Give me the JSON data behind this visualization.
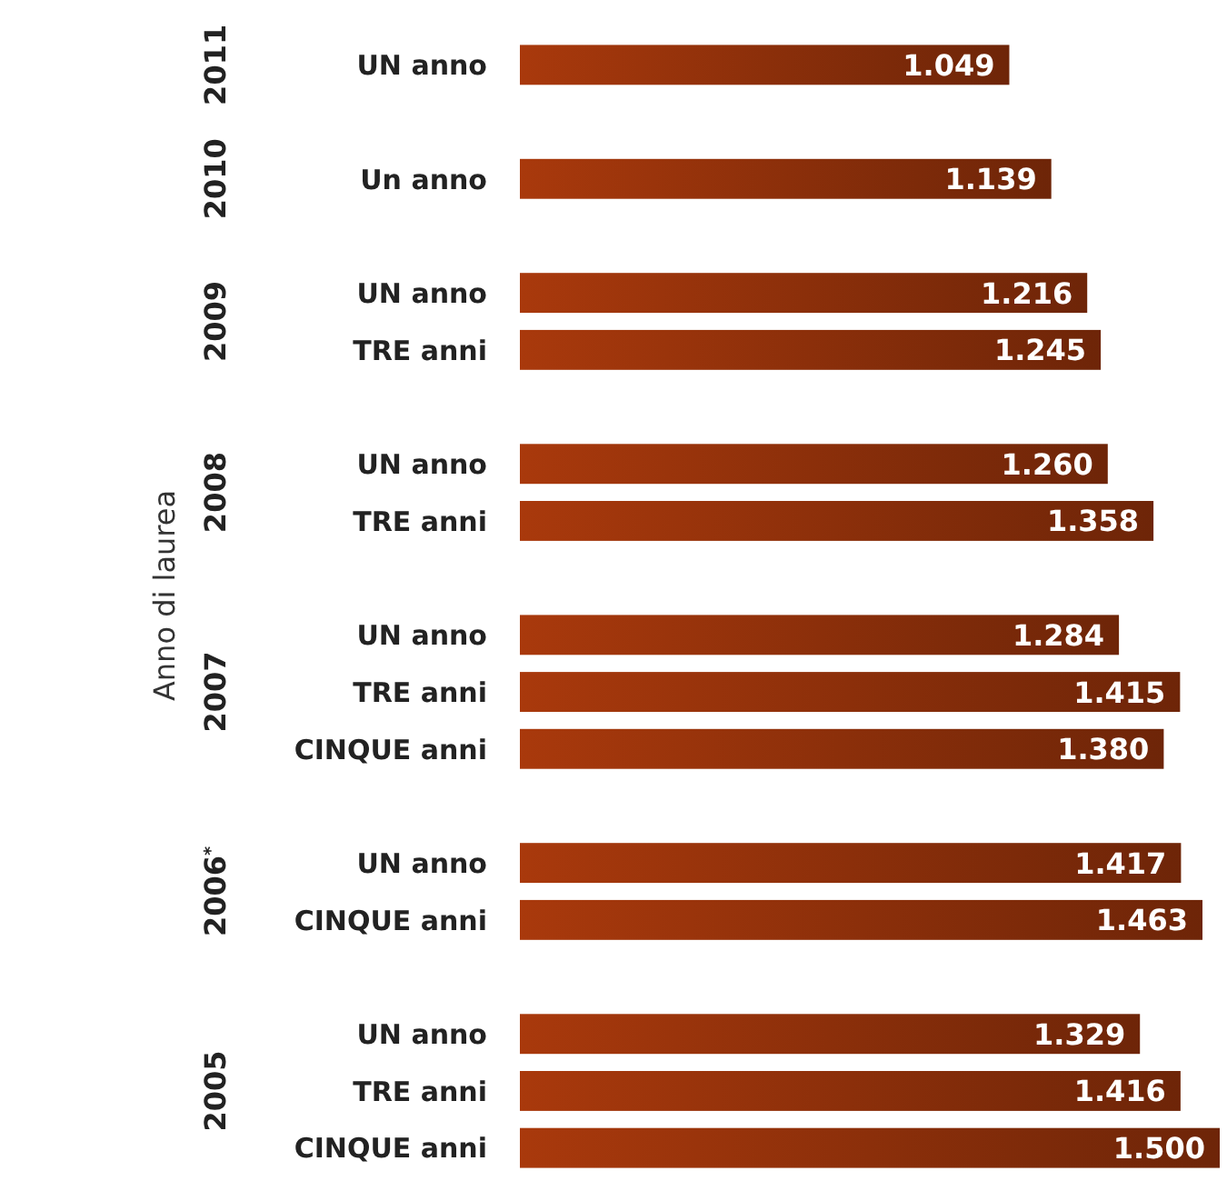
{
  "chart_data": {
    "type": "bar",
    "orientation": "horizontal",
    "ylabel": "Anno di laurea",
    "categories": [
      "UN anno",
      null,
      "Un anno",
      null,
      "UN anno",
      "TRE anni",
      null,
      "UN anno",
      "TRE anni",
      null,
      "UN anno",
      "TRE anni",
      "CINQUE anni",
      null,
      "UN anno",
      "CINQUE anni",
      null,
      "UN anno",
      "TRE anni",
      "CINQUE anni"
    ],
    "values": [
      1049,
      null,
      1139,
      null,
      1216,
      1245,
      null,
      1260,
      1358,
      null,
      1284,
      1415,
      1380,
      null,
      1417,
      1463,
      null,
      1329,
      1416,
      1500
    ],
    "value_labels": [
      "1.049",
      null,
      "1.139",
      null,
      "1.216",
      "1.245",
      null,
      "1.260",
      "1.358",
      null,
      "1.284",
      "1.415",
      "1.380",
      null,
      "1.417",
      "1.463",
      null,
      "1.329",
      "1.416",
      "1.500"
    ],
    "color": "#6e2508",
    "tick_labels": "y",
    "annotations": [
      "2011",
      "2010",
      "2009",
      "2008",
      "2007",
      "2006$^{*}$",
      "2005"
    ]
  }
}
